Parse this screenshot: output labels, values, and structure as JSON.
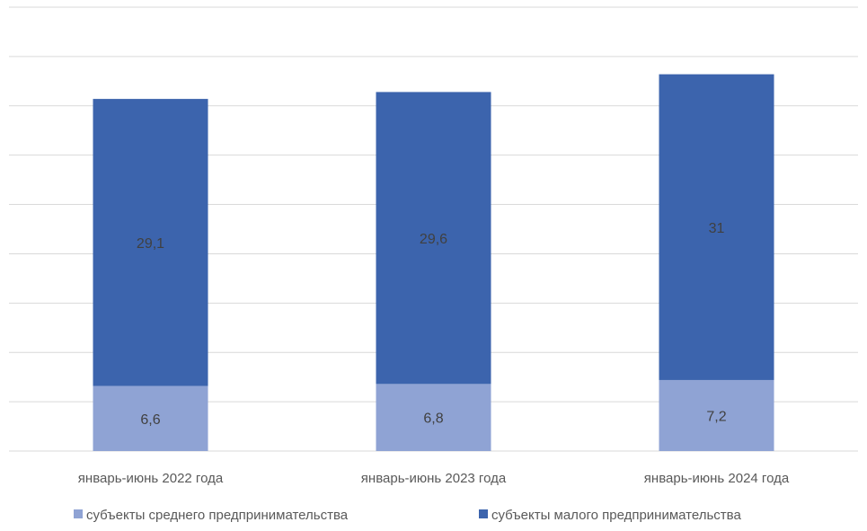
{
  "chart_data": {
    "type": "bar",
    "stacked": true,
    "categories": [
      "январь-июнь 2022 года",
      "январь-июнь 2023 года",
      "январь-июнь 2024 года"
    ],
    "series": [
      {
        "name": "субъекты среднего предпринимательства",
        "values": [
          6.6,
          6.8,
          7.2
        ],
        "labels": [
          "6,6",
          "6,8",
          "7,2"
        ],
        "color": "#8fa3d4"
      },
      {
        "name": "субъекты малого предпринимательства",
        "values": [
          29.1,
          29.6,
          31
        ],
        "labels": [
          "29,1",
          "29,6",
          "31"
        ],
        "color": "#3c64ad"
      }
    ],
    "ylim": [
      0,
      45
    ],
    "grid": true,
    "legend_position": "bottom"
  }
}
